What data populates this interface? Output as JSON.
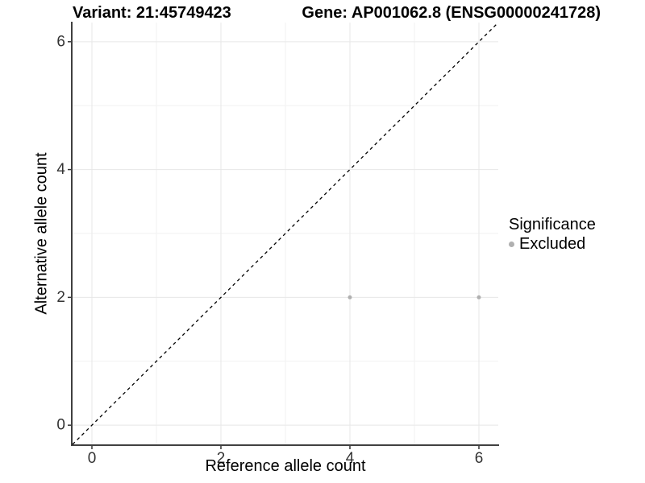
{
  "titles": {
    "left": "Variant: 21:45749423",
    "right": "Gene: AP001062.8 (ENSG00000241728)"
  },
  "axes": {
    "xlabel": "Reference allele count",
    "ylabel": "Alternative allele count"
  },
  "legend": {
    "title": "Significance",
    "items": [
      {
        "label": "Excluded",
        "color": "#b0b0b0"
      }
    ]
  },
  "chart_data": {
    "type": "scatter",
    "title_left": "Variant: 21:45749423",
    "title_right": "Gene: AP001062.8 (ENSG00000241728)",
    "xlabel": "Reference allele count",
    "ylabel": "Alternative allele count",
    "xlim": [
      -0.3,
      6.3
    ],
    "ylim": [
      -0.3,
      6.3
    ],
    "xticks": [
      0,
      2,
      4,
      6
    ],
    "yticks": [
      0,
      2,
      4,
      6
    ],
    "minor_xticks": [
      1,
      3,
      5
    ],
    "minor_yticks": [
      1,
      3,
      5
    ],
    "grid": "on",
    "legend_position": "right",
    "legend_title": "Significance",
    "reference_line": {
      "type": "abline",
      "slope": 1,
      "intercept": 0,
      "style": "dashed",
      "color": "#000000"
    },
    "series": [
      {
        "name": "Excluded",
        "color": "#b0b0b0",
        "marker": "circle",
        "points": [
          [
            4,
            2
          ],
          [
            6,
            2
          ]
        ]
      }
    ]
  },
  "colors": {
    "axis_line": "#404040",
    "tick_mark": "#333333",
    "tick_label": "#333333",
    "grid_major": "#e7e7e7",
    "grid_minor": "#f2f2f2",
    "reference_line": "#000000",
    "background": "#ffffff"
  }
}
